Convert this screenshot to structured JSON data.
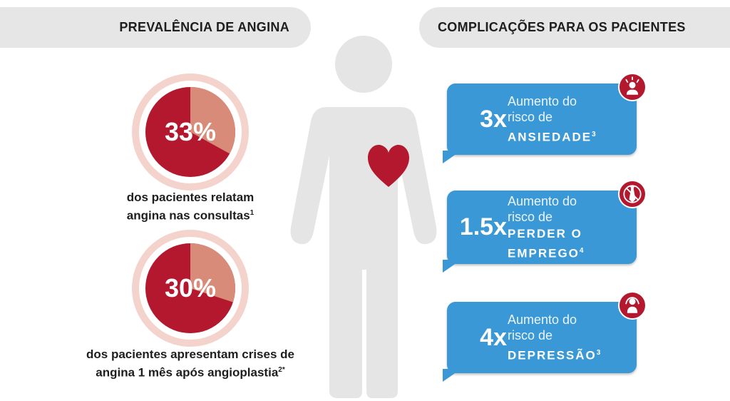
{
  "colors": {
    "header_bg": "#e6e6e6",
    "pie_dark": "#b4182f",
    "pie_light": "#d98b7a",
    "halo": "#f4d3cc",
    "card_blue": "#3a98d6",
    "body_gray": "#e5e5e5",
    "heart": "#b4182f"
  },
  "header": {
    "left_title": "PREVALÊNCIA DE ANGINA",
    "right_title": "COMPLICAÇÕES PARA OS PACIENTES"
  },
  "prevalence": [
    {
      "percent_label": "33%",
      "percent_value": 33,
      "caption_line1": "dos pacientes relatam",
      "caption_line2": "angina nas consultas",
      "caption_sup": "1"
    },
    {
      "percent_label": "30%",
      "percent_value": 30,
      "caption_line1": "dos pacientes apresentam crises de",
      "caption_line2": "angina 1 mês após angioplastia",
      "caption_sup": "2*"
    }
  ],
  "complications": [
    {
      "multiplier": "3x",
      "line1": "Aumento do",
      "line2": "risco de",
      "bold_lines": [
        "ANSIEDADE"
      ],
      "sup": "3",
      "icon": "anxiety-icon"
    },
    {
      "multiplier": "1.5x",
      "line1": "Aumento do",
      "line2": "risco de",
      "bold_lines": [
        "PERDER O",
        "EMPREGO"
      ],
      "sup": "4",
      "icon": "no-job-tie-icon"
    },
    {
      "multiplier": "4x",
      "line1": "Aumento do",
      "line2": "risco de",
      "bold_lines": [
        "DEPRESSÃO"
      ],
      "sup": "3",
      "icon": "depression-icon"
    }
  ]
}
